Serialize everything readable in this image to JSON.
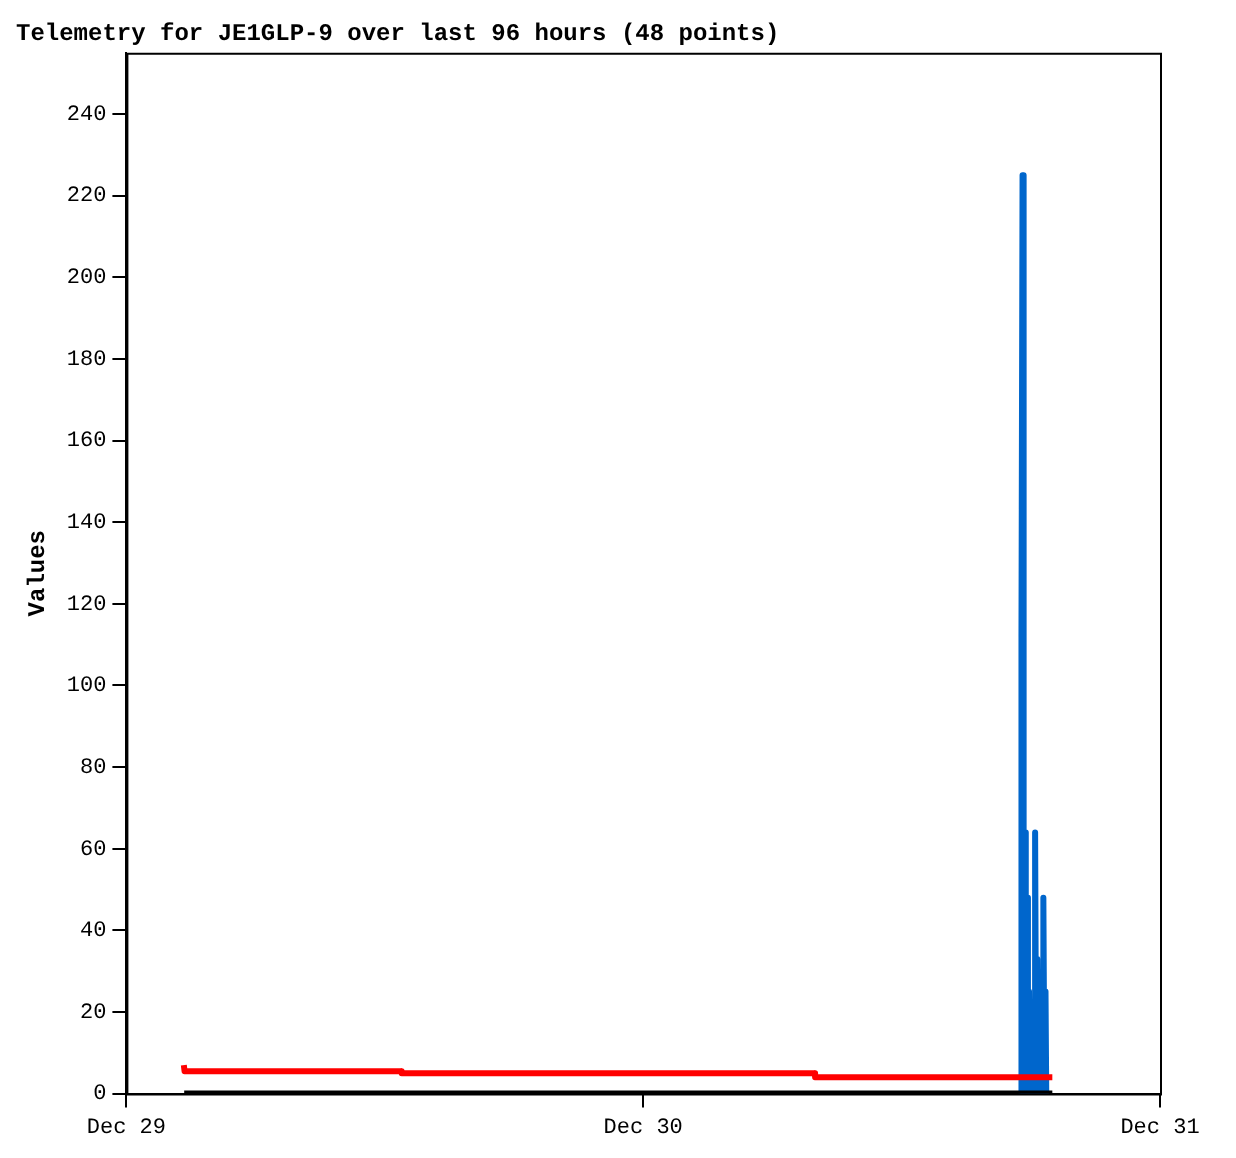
{
  "chart_data": {
    "type": "line",
    "title": "Telemetry for JE1GLP-9 over last 96 hours (48 points)",
    "ylabel": "Values",
    "xlim": [
      "--12-29",
      "--12-31"
    ],
    "xticks": [
      {
        "value": "--12-29",
        "label": "Dec 29"
      },
      {
        "value": "--12-30",
        "label": "Dec 30"
      },
      {
        "value": "--12-31",
        "label": "Dec 31"
      }
    ],
    "ylim": [
      0,
      255
    ],
    "yticks": [
      0,
      20,
      40,
      60,
      80,
      100,
      120,
      140,
      160,
      180,
      200,
      220,
      240
    ],
    "grid": false,
    "legend": false,
    "marker": "none",
    "line_style": "solid",
    "series": [
      {
        "color": "#ff0000",
        "x": [
          "--12-29T02:40",
          "--12-29T02:42",
          "--12-29T12:46",
          "--12-29T12:47",
          "--12-30T07:58",
          "--12-30T07:59",
          "--12-30T19:00"
        ],
        "values": [
          7,
          5.5,
          5.5,
          5,
          5,
          4,
          4
        ]
      },
      {
        "color": "#000000",
        "x": [
          "--12-29T02:41",
          "--12-30T19:00"
        ],
        "values": [
          0,
          0
        ]
      },
      {
        "color": "#0066cc",
        "x": [
          "--12-30T17:31",
          "--12-30T17:34",
          "--12-30T17:37",
          "--12-30T17:40",
          "--12-30T17:43",
          "--12-30T17:46",
          "--12-30T17:49",
          "--12-30T17:52",
          "--12-30T17:55",
          "--12-30T17:58",
          "--12-30T18:09",
          "--12-30T18:12",
          "--12-30T18:15",
          "--12-30T18:18",
          "--12-30T18:21",
          "--12-30T18:26",
          "--12-30T18:32",
          "--12-30T18:35",
          "--12-30T18:38",
          "--12-30T18:41",
          "--12-30T18:43"
        ],
        "values": [
          0,
          112,
          225,
          0,
          64,
          0,
          48,
          0,
          25,
          0,
          0,
          64,
          0,
          33,
          0,
          17,
          0,
          48,
          0,
          25,
          0
        ]
      }
    ]
  }
}
